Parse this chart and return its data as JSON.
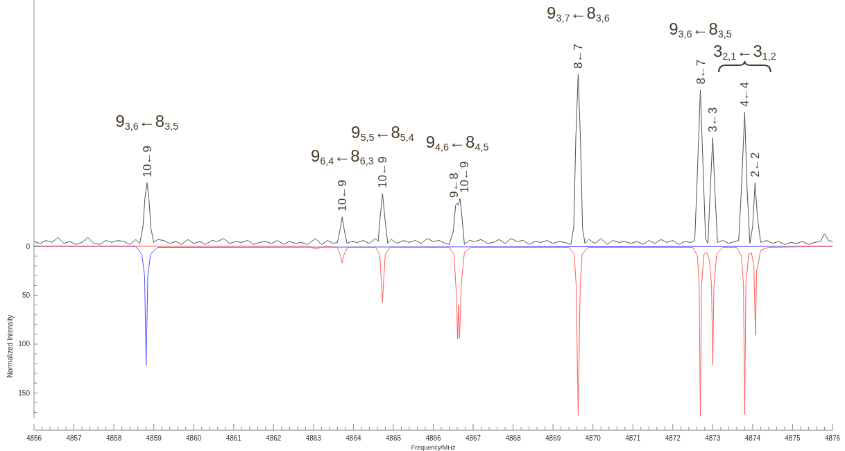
{
  "chart_data": {
    "type": "line",
    "xlabel": "Frequency/MHz",
    "ylabel": "Normalized Intensity",
    "xlim": [
      4856,
      4876
    ],
    "ylim": [
      176,
      -252
    ],
    "xticks": [
      4856,
      {
        "value": 4856.2,
        "label": null
      },
      {
        "value": 4856.4,
        "label": null
      },
      {
        "value": 4856.6,
        "label": null
      },
      {
        "value": 4856.8,
        "label": null
      },
      4857,
      {
        "value": 4857.2,
        "label": null
      },
      {
        "value": 4857.4,
        "label": null
      },
      {
        "value": 4857.6,
        "label": null
      },
      {
        "value": 4857.8,
        "label": null
      },
      4858,
      {
        "value": 4858.2,
        "label": null
      },
      {
        "value": 4858.4,
        "label": null
      },
      {
        "value": 4858.6,
        "label": null
      },
      {
        "value": 4858.8,
        "label": null
      },
      4859,
      {
        "value": 4859.2,
        "label": null
      },
      {
        "value": 4859.4,
        "label": null
      },
      {
        "value": 4859.6,
        "label": null
      },
      {
        "value": 4859.8,
        "label": null
      },
      4860,
      {
        "value": 4860.2,
        "label": null
      },
      {
        "value": 4860.4,
        "label": null
      },
      {
        "value": 4860.6,
        "label": null
      },
      {
        "value": 4860.8,
        "label": null
      },
      4861,
      {
        "value": 4861.2,
        "label": null
      },
      {
        "value": 4861.4,
        "label": null
      },
      {
        "value": 4861.6,
        "label": null
      },
      {
        "value": 4861.8,
        "label": null
      },
      4862,
      {
        "value": 4862.2,
        "label": null
      },
      {
        "value": 4862.4,
        "label": null
      },
      {
        "value": 4862.6,
        "label": null
      },
      {
        "value": 4862.8,
        "label": null
      },
      4863,
      {
        "value": 4863.2,
        "label": null
      },
      {
        "value": 4863.4,
        "label": null
      },
      {
        "value": 4863.6,
        "label": null
      },
      {
        "value": 4863.8,
        "label": null
      },
      4864,
      {
        "value": 4864.2,
        "label": null
      },
      {
        "value": 4864.4,
        "label": null
      },
      {
        "value": 4864.6,
        "label": null
      },
      {
        "value": 4864.8,
        "label": null
      },
      4865,
      {
        "value": 4865.2,
        "label": null
      },
      {
        "value": 4865.4,
        "label": null
      },
      {
        "value": 4865.6,
        "label": null
      },
      {
        "value": 4865.8,
        "label": null
      },
      4866,
      {
        "value": 4866.2,
        "label": null
      },
      {
        "value": 4866.4,
        "label": null
      },
      {
        "value": 4866.6,
        "label": null
      },
      {
        "value": 4866.8,
        "label": null
      },
      4867,
      {
        "value": 4867.2,
        "label": null
      },
      {
        "value": 4867.4,
        "label": null
      },
      {
        "value": 4867.6,
        "label": null
      },
      {
        "value": 4867.8,
        "label": null
      },
      4868,
      {
        "value": 4868.2,
        "label": null
      },
      {
        "value": 4868.4,
        "label": null
      },
      {
        "value": 4868.6,
        "label": null
      },
      {
        "value": 4868.8,
        "label": null
      },
      4869,
      {
        "value": 4869.2,
        "label": null
      },
      {
        "value": 4869.4,
        "label": null
      },
      {
        "value": 4869.6,
        "label": null
      },
      {
        "value": 4869.8,
        "label": null
      },
      4870,
      {
        "value": 4870.2,
        "label": null
      },
      {
        "value": 4870.4,
        "label": null
      },
      {
        "value": 4870.6,
        "label": null
      },
      {
        "value": 4870.8,
        "label": null
      },
      4871,
      {
        "value": 4871.2,
        "label": null
      },
      {
        "value": 4871.4,
        "label": null
      },
      {
        "value": 4871.6,
        "label": null
      },
      {
        "value": 4871.8,
        "label": null
      },
      4872,
      {
        "value": 4872.2,
        "label": null
      },
      {
        "value": 4872.4,
        "label": null
      },
      {
        "value": 4872.6,
        "label": null
      },
      {
        "value": 4872.8,
        "label": null
      },
      4873,
      {
        "value": 4873.2,
        "label": null
      },
      {
        "value": 4873.4,
        "label": null
      },
      {
        "value": 4873.6,
        "label": null
      },
      {
        "value": 4873.8,
        "label": null
      },
      4874,
      {
        "value": 4874.2,
        "label": null
      },
      {
        "value": 4874.4,
        "label": null
      },
      {
        "value": 4874.6,
        "label": null
      },
      {
        "value": 4874.8,
        "label": null
      },
      4875,
      {
        "value": 4875.2,
        "label": null
      },
      {
        "value": 4875.4,
        "label": null
      },
      {
        "value": 4875.6,
        "label": null
      },
      {
        "value": 4875.8,
        "label": null
      },
      4876
    ],
    "yticks": [
      0,
      {
        "value": 10,
        "label": null
      },
      {
        "value": 20,
        "label": null
      },
      {
        "value": 30,
        "label": null
      },
      {
        "value": 40,
        "label": null
      },
      50,
      {
        "value": 60,
        "label": null
      },
      {
        "value": 70,
        "label": null
      },
      {
        "value": 80,
        "label": null
      },
      {
        "value": 90,
        "label": null
      },
      100,
      {
        "value": 110,
        "label": null
      },
      {
        "value": 120,
        "label": null
      },
      {
        "value": 130,
        "label": null
      },
      {
        "value": 140,
        "label": null
      },
      150,
      {
        "value": 160,
        "label": null
      },
      {
        "value": 170,
        "label": null
      }
    ],
    "grid": false,
    "marker": "none",
    "line_style": "solid",
    "series": [
      {
        "color": "#5050ff",
        "x": [
          4856,
          4858.55,
          4858.7,
          4858.77,
          4858.81,
          4858.85,
          4858.92,
          4859.1,
          4876
        ],
        "values": [
          0,
          0,
          8,
          30,
          122,
          30,
          8,
          1,
          0
        ]
      },
      {
        "color": "#ff5a5a",
        "x": [
          4856,
          4862.9,
          4863.05,
          4863.12,
          4863.3,
          4863.6,
          4863.68,
          4863.72,
          4863.76,
          4863.85,
          4864.55,
          4864.66,
          4864.7,
          4864.73,
          4864.76,
          4864.8,
          4864.92,
          4866.4,
          4866.52,
          4866.58,
          4866.61,
          4866.63,
          4866.66,
          4866.7,
          4866.78,
          4866.95,
          4869.4,
          4869.53,
          4869.58,
          4869.63,
          4869.68,
          4869.73,
          4869.88,
          4872.5,
          4872.62,
          4872.66,
          4872.69,
          4872.72,
          4872.78,
          4872.85,
          4872.92,
          4872.97,
          4873,
          4873.03,
          4873.1,
          4873.25,
          4873.6,
          4873.72,
          4873.77,
          4873.8,
          4873.83,
          4873.9,
          4873.97,
          4874.03,
          4874.07,
          4874.1,
          4874.14,
          4874.2,
          4874.4,
          4876
        ],
        "values": [
          0,
          0,
          3,
          2,
          0,
          1,
          10,
          17,
          9,
          1,
          1,
          8,
          35,
          57,
          33,
          8,
          1,
          1,
          8,
          50,
          95,
          60,
          94,
          40,
          6,
          1,
          1,
          8,
          40,
          173,
          40,
          8,
          1,
          1,
          10,
          40,
          174,
          40,
          8,
          6,
          15,
          40,
          121,
          40,
          8,
          1,
          1,
          10,
          40,
          172,
          40,
          8,
          7,
          20,
          91,
          25,
          18,
          4,
          1,
          0
        ]
      },
      {
        "color": "#505050",
        "x": [
          4856,
          4856.15,
          4856.3,
          4856.45,
          4856.6,
          4856.75,
          4856.9,
          4857.05,
          4857.2,
          4857.35,
          4857.5,
          4857.65,
          4857.8,
          4857.95,
          4858.1,
          4858.25,
          4858.4,
          4858.55,
          4858.65,
          4858.73,
          4858.78,
          4858.83,
          4858.88,
          4858.93,
          4859,
          4859.1,
          4859.25,
          4859.4,
          4859.55,
          4859.7,
          4859.85,
          4860,
          4860.15,
          4860.3,
          4860.45,
          4860.6,
          4860.75,
          4860.9,
          4861.05,
          4861.2,
          4861.35,
          4861.5,
          4861.65,
          4861.8,
          4861.95,
          4862.1,
          4862.25,
          4862.4,
          4862.55,
          4862.7,
          4862.85,
          4863.05,
          4863.2,
          4863.35,
          4863.5,
          4863.6,
          4863.67,
          4863.72,
          4863.77,
          4863.84,
          4863.95,
          4864.1,
          4864.25,
          4864.4,
          4864.55,
          4864.62,
          4864.67,
          4864.73,
          4864.79,
          4864.86,
          4864.95,
          4865.1,
          4865.25,
          4865.4,
          4865.55,
          4865.7,
          4865.85,
          4866,
          4866.15,
          4866.3,
          4866.4,
          4866.5,
          4866.56,
          4866.6,
          4866.63,
          4866.67,
          4866.72,
          4866.78,
          4866.9,
          4867.05,
          4867.2,
          4867.35,
          4867.5,
          4867.65,
          4867.8,
          4867.95,
          4868.1,
          4868.25,
          4868.4,
          4868.55,
          4868.7,
          4868.85,
          4869,
          4869.15,
          4869.3,
          4869.45,
          4869.52,
          4869.57,
          4869.63,
          4869.69,
          4869.74,
          4869.8,
          4869.9,
          4870.05,
          4870.2,
          4870.35,
          4870.5,
          4870.65,
          4870.8,
          4870.95,
          4871.1,
          4871.25,
          4871.4,
          4871.55,
          4871.7,
          4871.85,
          4872,
          4872.15,
          4872.3,
          4872.45,
          4872.55,
          4872.62,
          4872.69,
          4872.75,
          4872.82,
          4872.88,
          4872.94,
          4873,
          4873.05,
          4873.12,
          4873.25,
          4873.4,
          4873.55,
          4873.65,
          4873.72,
          4873.8,
          4873.86,
          4873.93,
          4874,
          4874.06,
          4874.12,
          4874.2,
          4874.35,
          4874.5,
          4874.65,
          4874.8,
          4874.95,
          4875.1,
          4875.25,
          4875.4,
          4875.55,
          4875.7,
          4875.8,
          4875.9,
          4876
        ],
        "values": [
          -5,
          -3,
          -6,
          -4,
          -9,
          -3,
          -5,
          -2,
          -4,
          -9,
          -3,
          -2,
          -6,
          -4,
          -6,
          -5,
          -2,
          -7,
          -3,
          -20,
          -50,
          -65,
          -48,
          -18,
          -4,
          -7,
          -6,
          -3,
          -5,
          -2,
          -7,
          -3,
          -5,
          -2,
          -6,
          -5,
          -8,
          -3,
          -5,
          -4,
          -6,
          -2,
          -4,
          -5,
          -3,
          -6,
          -2,
          -5,
          -3,
          -4,
          -2,
          -8,
          -2,
          -6,
          -3,
          -4,
          -18,
          -30,
          -17,
          -3,
          -5,
          -4,
          -6,
          -3,
          -8,
          -5,
          -30,
          -54,
          -28,
          -3,
          -7,
          -3,
          -6,
          -4,
          -6,
          -3,
          -8,
          -5,
          -6,
          -3,
          -2,
          -15,
          -42,
          -44,
          -42,
          -49,
          -30,
          -2,
          -6,
          -5,
          -7,
          -3,
          -4,
          -7,
          -3,
          -8,
          -5,
          -6,
          -2,
          -5,
          -4,
          -6,
          -3,
          -5,
          -4,
          -2,
          -20,
          -110,
          -176,
          -105,
          -18,
          -3,
          -7,
          -3,
          -8,
          -2,
          -6,
          -4,
          -5,
          -3,
          -5,
          -2,
          -6,
          -3,
          -7,
          -4,
          -6,
          -2,
          -5,
          -4,
          -6,
          -80,
          -160,
          -90,
          -8,
          -3,
          -60,
          -111,
          -60,
          -4,
          -6,
          -3,
          -5,
          -6,
          -60,
          -137,
          -60,
          -3,
          -20,
          -65,
          -30,
          -4,
          -6,
          -3,
          -5,
          -2,
          -4,
          -3,
          -5,
          -2,
          -4,
          -5,
          -13,
          -6,
          -5
        ]
      }
    ],
    "annotations": [
      "9$_{3,6}$←8$_{3,5}$",
      {
        "text": "10←9",
        "x": 4858.83,
        "y": -65
      },
      "9$_{6,4}$←8$_{6,3}$",
      {
        "text": "10←9",
        "x": 4863.72,
        "y": -30
      },
      "9$_{5,5}$←8$_{5,4}$",
      {
        "text": "10←9",
        "x": 4864.73,
        "y": -54
      },
      "9$_{4,6}$←8$_{4,5}$",
      {
        "text": "9←8",
        "x": 4866.6,
        "y": -44
      },
      {
        "text": "10←9",
        "x": 4866.67,
        "y": -49
      },
      "9$_{3,7}$←8$_{3,6}$",
      {
        "text": "8←7",
        "x": 4869.63,
        "y": -176
      },
      "9$_{3,6}$←8$_{3,5}$",
      {
        "text": "8←7",
        "x": 4872.69,
        "y": -160
      },
      {
        "text": "3←3",
        "x": 4873,
        "y": -111
      },
      "3$_{2,1}$←3$_{1,2}$",
      {
        "text": "4←4",
        "x": 4873.8,
        "y": -137
      },
      {
        "text": "2←2",
        "x": 4874.06,
        "y": -65
      }
    ]
  }
}
